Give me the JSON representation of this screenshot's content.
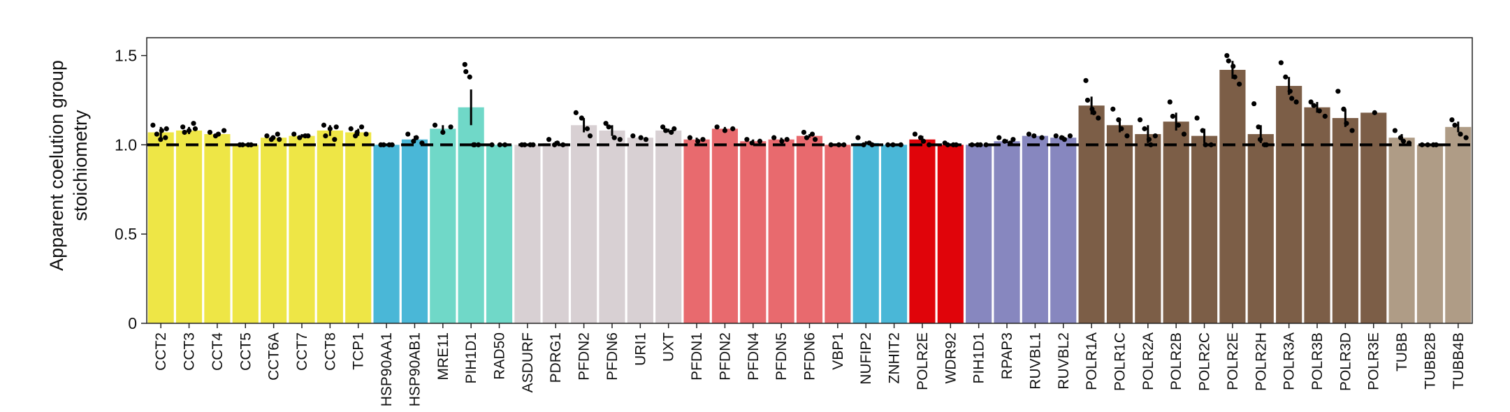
{
  "chart_data": {
    "type": "bar",
    "title": "",
    "xlabel": "",
    "ylabel_lines": [
      "Apparent coelution group",
      "stoichiometry"
    ],
    "ylim": [
      0,
      1.6
    ],
    "yticks": [
      0,
      0.5,
      1.0,
      1.5
    ],
    "ytick_labels": [
      "0",
      "0.5",
      "1.0",
      "1.5"
    ],
    "reference_line": 1.0,
    "bars": [
      {
        "label": "CCT2",
        "value": 1.07,
        "err": 0.03,
        "color": "#EEE646",
        "points": [
          1.11,
          1.06,
          1.03,
          1.08,
          1.04,
          1.09
        ]
      },
      {
        "label": "CCT3",
        "value": 1.08,
        "err": 0.02,
        "color": "#EEE646",
        "points": [
          1.1,
          1.07,
          1.08,
          1.12,
          1.09
        ]
      },
      {
        "label": "CCT4",
        "value": 1.06,
        "err": 0.01,
        "color": "#EEE646",
        "points": [
          1.07,
          1.05,
          1.06,
          1.08
        ]
      },
      {
        "label": "CCT5",
        "value": 1.0,
        "err": 0.0,
        "color": "#EEE646",
        "points": [
          1.0,
          1.0,
          1.0,
          1.0
        ]
      },
      {
        "label": "CCT6A",
        "value": 1.04,
        "err": 0.01,
        "color": "#EEE646",
        "points": [
          1.05,
          1.03,
          1.04,
          1.06,
          1.03
        ]
      },
      {
        "label": "CCT7",
        "value": 1.05,
        "err": 0.01,
        "color": "#EEE646",
        "points": [
          1.06,
          1.04,
          1.05,
          1.05
        ]
      },
      {
        "label": "CCT8",
        "value": 1.08,
        "err": 0.03,
        "color": "#EEE646",
        "points": [
          1.11,
          1.05,
          1.09,
          1.03,
          1.1
        ]
      },
      {
        "label": "TCP1",
        "value": 1.07,
        "err": 0.02,
        "color": "#EEE646",
        "points": [
          1.09,
          1.05,
          1.07,
          1.1,
          1.06
        ]
      },
      {
        "label": "HSP90AA1",
        "value": 1.0,
        "err": 0.0,
        "color": "#4AB7D7",
        "points": [
          1.0,
          1.0,
          1.0,
          1.0
        ]
      },
      {
        "label": "HSP90AB1",
        "value": 1.03,
        "err": 0.02,
        "color": "#4AB7D7",
        "points": [
          1.06,
          1.02,
          1.04,
          1.01
        ]
      },
      {
        "label": "MRE11",
        "value": 1.09,
        "err": 0.02,
        "color": "#70D8C8",
        "points": [
          1.11,
          1.07,
          1.1
        ]
      },
      {
        "label": "PIH1D1",
        "value": 1.21,
        "err": 0.1,
        "color": "#70D8C8",
        "points": [
          1.45,
          1.41,
          1.38,
          1.0,
          1.0,
          1.0
        ]
      },
      {
        "label": "RAD50",
        "value": 1.0,
        "err": 0.0,
        "color": "#70D8C8",
        "points": [
          1.0,
          1.0,
          1.0
        ]
      },
      {
        "label": "ASDURF",
        "value": 1.0,
        "err": 0.0,
        "color": "#D8D0D3",
        "points": [
          1.0,
          1.0,
          1.0,
          1.0
        ]
      },
      {
        "label": "PDRG1",
        "value": 1.01,
        "err": 0.01,
        "color": "#D8D0D3",
        "points": [
          1.03,
          1.0,
          1.01,
          1.0
        ]
      },
      {
        "label": "PFDN2",
        "value": 1.11,
        "err": 0.04,
        "color": "#D8D0D3",
        "points": [
          1.18,
          1.15,
          1.09,
          1.05
        ]
      },
      {
        "label": "PFDN6",
        "value": 1.08,
        "err": 0.03,
        "color": "#D8D0D3",
        "points": [
          1.12,
          1.1,
          1.04,
          1.03
        ]
      },
      {
        "label": "URI1",
        "value": 1.04,
        "err": 0.01,
        "color": "#D8D0D3",
        "points": [
          1.05,
          1.04,
          1.03
        ]
      },
      {
        "label": "UXT",
        "value": 1.08,
        "err": 0.01,
        "color": "#D8D0D3",
        "points": [
          1.1,
          1.08,
          1.07,
          1.09
        ]
      },
      {
        "label": "PFDN1",
        "value": 1.03,
        "err": 0.01,
        "color": "#E86A6E",
        "points": [
          1.04,
          1.02,
          1.03
        ]
      },
      {
        "label": "PFDN2",
        "value": 1.09,
        "err": 0.01,
        "color": "#E86A6E",
        "points": [
          1.1,
          1.08,
          1.09
        ]
      },
      {
        "label": "PFDN4",
        "value": 1.02,
        "err": 0.01,
        "color": "#E86A6E",
        "points": [
          1.03,
          1.01,
          1.02
        ]
      },
      {
        "label": "PFDN5",
        "value": 1.03,
        "err": 0.01,
        "color": "#E86A6E",
        "points": [
          1.04,
          1.02,
          1.03
        ]
      },
      {
        "label": "PFDN6",
        "value": 1.05,
        "err": 0.01,
        "color": "#E86A6E",
        "points": [
          1.07,
          1.04,
          1.06,
          1.03
        ]
      },
      {
        "label": "VBP1",
        "value": 1.0,
        "err": 0.0,
        "color": "#E86A6E",
        "points": [
          1.0,
          1.0,
          1.0
        ]
      },
      {
        "label": "NUFIP2",
        "value": 1.01,
        "err": 0.01,
        "color": "#4AB7D7",
        "points": [
          1.04,
          1.0,
          1.01,
          1.0
        ]
      },
      {
        "label": "ZNHIT2",
        "value": 1.0,
        "err": 0.0,
        "color": "#4AB7D7",
        "points": [
          1.0,
          1.0,
          1.0
        ]
      },
      {
        "label": "POLR2E",
        "value": 1.03,
        "err": 0.02,
        "color": "#E0040A",
        "points": [
          1.06,
          1.04,
          1.02,
          1.0
        ]
      },
      {
        "label": "WDR92",
        "value": 1.0,
        "err": 0.0,
        "color": "#E0040A",
        "points": [
          1.01,
          1.0,
          1.0,
          1.0
        ]
      },
      {
        "label": "PIH1D1",
        "value": 1.0,
        "err": 0.0,
        "color": "#8787BF",
        "points": [
          1.0,
          1.0,
          1.0,
          1.0
        ]
      },
      {
        "label": "RPAP3",
        "value": 1.02,
        "err": 0.01,
        "color": "#8787BF",
        "points": [
          1.04,
          1.02,
          1.01,
          1.03
        ]
      },
      {
        "label": "RUVBL1",
        "value": 1.05,
        "err": 0.01,
        "color": "#8787BF",
        "points": [
          1.06,
          1.05,
          1.04
        ]
      },
      {
        "label": "RUVBL2",
        "value": 1.04,
        "err": 0.01,
        "color": "#8787BF",
        "points": [
          1.05,
          1.04,
          1.03,
          1.05
        ]
      },
      {
        "label": "POLR1A",
        "value": 1.22,
        "err": 0.05,
        "color": "#7C5E47",
        "points": [
          1.36,
          1.25,
          1.2,
          1.18,
          1.15
        ]
      },
      {
        "label": "POLR1C",
        "value": 1.11,
        "err": 0.04,
        "color": "#7C5E47",
        "points": [
          1.2,
          1.14,
          1.09,
          1.05
        ]
      },
      {
        "label": "POLR2A",
        "value": 1.06,
        "err": 0.05,
        "color": "#7C5E47",
        "points": [
          1.14,
          1.09,
          1.03,
          1.0,
          1.05
        ]
      },
      {
        "label": "POLR2B",
        "value": 1.13,
        "err": 0.05,
        "color": "#7C5E47",
        "points": [
          1.24,
          1.16,
          1.11,
          1.06
        ]
      },
      {
        "label": "POLR2C",
        "value": 1.05,
        "err": 0.04,
        "color": "#7C5E47",
        "points": [
          1.15,
          1.08,
          1.0,
          1.0
        ]
      },
      {
        "label": "POLR2E",
        "value": 1.42,
        "err": 0.05,
        "color": "#7C5E47",
        "points": [
          1.5,
          1.47,
          1.44,
          1.38,
          1.34
        ]
      },
      {
        "label": "POLR2H",
        "value": 1.06,
        "err": 0.05,
        "color": "#7C5E47",
        "points": [
          1.23,
          1.1,
          1.03,
          1.0,
          1.0
        ]
      },
      {
        "label": "POLR3A",
        "value": 1.33,
        "err": 0.05,
        "color": "#7C5E47",
        "points": [
          1.46,
          1.38,
          1.3,
          1.26,
          1.24
        ]
      },
      {
        "label": "POLR3B",
        "value": 1.21,
        "err": 0.03,
        "color": "#7C5E47",
        "points": [
          1.24,
          1.22,
          1.19,
          1.16
        ]
      },
      {
        "label": "POLR3D",
        "value": 1.15,
        "err": 0.05,
        "color": "#7C5E47",
        "points": [
          1.3,
          1.2,
          1.12,
          1.08
        ]
      },
      {
        "label": "POLR3E",
        "value": 1.18,
        "err": 0.0,
        "color": "#7C5E47",
        "points": [
          1.18
        ]
      },
      {
        "label": "TUBB",
        "value": 1.04,
        "err": 0.02,
        "color": "#AF9C86",
        "points": [
          1.08,
          1.04,
          1.02,
          1.01
        ]
      },
      {
        "label": "TUBB2B",
        "value": 1.0,
        "err": 0.0,
        "color": "#AF9C86",
        "points": [
          1.0,
          1.0,
          1.0,
          1.0
        ]
      },
      {
        "label": "TUBB4B",
        "value": 1.1,
        "err": 0.03,
        "color": "#AF9C86",
        "points": [
          1.14,
          1.11,
          1.06,
          1.04
        ]
      }
    ]
  }
}
